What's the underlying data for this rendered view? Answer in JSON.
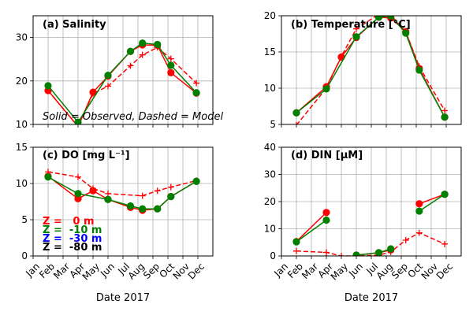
{
  "chart_data": [
    {
      "type": "line",
      "title": "(a) Salinity",
      "xlabel": "",
      "ylabel": "",
      "ylim": [
        10,
        35
      ],
      "yticks": [
        10,
        20,
        30
      ],
      "xlim": [
        1,
        13
      ],
      "grid": true,
      "annotation": "Solid = Observed, Dashed = Model",
      "series": [
        {
          "color": "#ff0000",
          "style": "solid",
          "marker": "circle",
          "x": [
            2,
            4,
            5,
            6,
            7.5,
            8.3,
            9.3,
            10.2,
            11.9
          ],
          "y": [
            17.8,
            9.5,
            17.4,
            21.1,
            26.8,
            28.3,
            28.2,
            21.9,
            17.2
          ]
        },
        {
          "color": "#ff0000",
          "style": "dashed",
          "marker": "plus",
          "x": [
            2,
            4,
            5,
            6,
            7.5,
            8.3,
            9.3,
            10.2,
            11.9
          ],
          "y": [
            17.8,
            9.5,
            17.1,
            18.8,
            23.5,
            26.0,
            27.7,
            25.1,
            19.5
          ]
        },
        {
          "color": "#008000",
          "style": "solid",
          "marker": "circle",
          "x": [
            2,
            4,
            6,
            7.5,
            8.3,
            9.3,
            10.2,
            11.9
          ],
          "y": [
            18.9,
            10.5,
            21.3,
            26.8,
            28.7,
            28.4,
            23.6,
            17.3
          ]
        }
      ]
    },
    {
      "type": "line",
      "title": "(b) Temperature [°C]",
      "xlabel": "",
      "ylabel": "",
      "ylim": [
        5,
        20
      ],
      "yticks": [
        5,
        10,
        15,
        20
      ],
      "xlim": [
        1,
        13
      ],
      "grid": true,
      "series": [
        {
          "color": "#ff0000",
          "style": "solid",
          "marker": "circle",
          "x": [
            2,
            4,
            5,
            6,
            7.5,
            8.3,
            9.3,
            10.2,
            11.9
          ],
          "y": [
            6.6,
            10.2,
            14.3,
            17.0,
            19.8,
            19.7,
            17.8,
            12.7,
            6.0
          ]
        },
        {
          "color": "#ff0000",
          "style": "dashed",
          "marker": "plus",
          "x": [
            2,
            4,
            5,
            6,
            7.5,
            8.3,
            9.3,
            10.2,
            11.9
          ],
          "y": [
            4.9,
            10.0,
            14.4,
            18.2,
            20.2,
            20.1,
            17.8,
            13.0,
            6.9
          ]
        },
        {
          "color": "#008000",
          "style": "solid",
          "marker": "circle",
          "x": [
            2,
            4,
            6,
            7.5,
            8.3,
            9.3,
            10.2,
            11.9
          ],
          "y": [
            6.6,
            9.9,
            17.1,
            19.8,
            20.0,
            17.6,
            12.5,
            6.0
          ]
        }
      ]
    },
    {
      "type": "line",
      "title": "(c) DO [mg L⁻¹]",
      "xlabel": "Date 2017",
      "ylabel": "",
      "ylim": [
        0,
        15
      ],
      "yticks": [
        0,
        5,
        10,
        15
      ],
      "xlim": [
        1,
        13
      ],
      "grid": true,
      "xticklabels": [
        "Jan",
        "Feb",
        "Mar",
        "Apr",
        "May",
        "Jun",
        "Jul",
        "Aug",
        "Sep",
        "Oct",
        "Nov",
        "Dec"
      ],
      "legend": [
        {
          "text": "Z =   0 m",
          "color": "#ff0000"
        },
        {
          "text": "Z =  -10 m",
          "color": "#008000"
        },
        {
          "text": "Z =  -30 m",
          "color": "#0000ff"
        },
        {
          "text": "Z =  -80 m",
          "color": "#000000"
        }
      ],
      "series": [
        {
          "color": "#ff0000",
          "style": "solid",
          "marker": "circle",
          "x": [
            2,
            4,
            5,
            6,
            7.5,
            8.3,
            9.3,
            10.2,
            11.9
          ],
          "y": [
            11.0,
            7.9,
            9.0,
            7.8,
            6.7,
            6.3,
            6.5,
            8.2,
            10.3
          ]
        },
        {
          "color": "#ff0000",
          "style": "dashed",
          "marker": "plus",
          "x": [
            2,
            4,
            5,
            6,
            8.3,
            9.3,
            10.2,
            11.9
          ],
          "y": [
            11.6,
            10.9,
            9.3,
            8.6,
            8.3,
            9.0,
            9.5,
            10.4
          ]
        },
        {
          "color": "#008000",
          "style": "solid",
          "marker": "circle",
          "x": [
            2,
            4,
            6,
            7.5,
            8.3,
            9.3,
            10.2,
            11.9
          ],
          "y": [
            10.9,
            8.6,
            7.8,
            6.9,
            6.5,
            6.5,
            8.2,
            10.3
          ]
        }
      ]
    },
    {
      "type": "line",
      "title": "(d) DIN  [μM]",
      "xlabel": "Date 2017",
      "ylabel": "",
      "ylim": [
        0,
        40
      ],
      "yticks": [
        0,
        10,
        20,
        30,
        40
      ],
      "xlim": [
        1,
        13
      ],
      "grid": true,
      "xticklabels": [
        "Jan",
        "Feb",
        "Mar",
        "Apr",
        "May",
        "Jun",
        "Jul",
        "Aug",
        "Sep",
        "Oct",
        "Nov",
        "Dec"
      ],
      "series": [
        {
          "color": "#ff0000",
          "style": "solid",
          "marker": "circle",
          "segments": true,
          "x": [
            2,
            4,
            null,
            6,
            7.5,
            8.3,
            null,
            10.2,
            11.9
          ],
          "y": [
            5.3,
            16.0,
            null,
            0.3,
            1.2,
            2.2,
            null,
            19.2,
            22.7
          ]
        },
        {
          "color": "#ff0000",
          "style": "dashed",
          "marker": "plus",
          "x": [
            2,
            4,
            5,
            6,
            7.5,
            8.3,
            9.3,
            10.2,
            11.9
          ],
          "y": [
            1.8,
            1.3,
            0.0,
            0.0,
            0.3,
            1.5,
            5.8,
            8.5,
            4.4
          ]
        },
        {
          "color": "#008000",
          "style": "solid",
          "marker": "circle",
          "segments": true,
          "x": [
            2,
            4,
            null,
            6,
            7.5,
            8.3,
            null,
            10.2,
            11.9
          ],
          "y": [
            5.2,
            13.2,
            null,
            0.3,
            1.2,
            2.6,
            null,
            16.5,
            22.7
          ]
        }
      ]
    }
  ]
}
